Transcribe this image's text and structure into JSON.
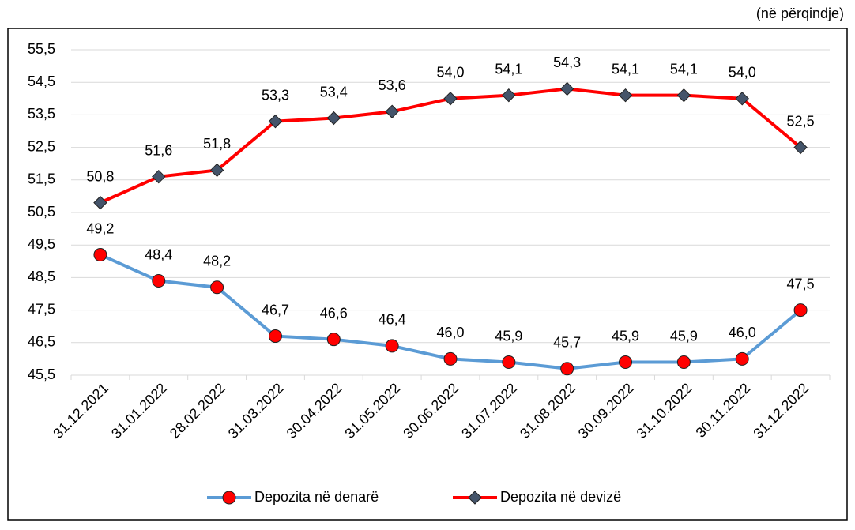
{
  "chart_data": {
    "type": "line",
    "unit_label": "(në përqindje)",
    "categories": [
      "31.12.2021",
      "31.01.2022",
      "28.02.2022",
      "31.03.2022",
      "30.04.2022",
      "31.05.2022",
      "30.06.2022",
      "31.07.2022",
      "31.08.2022",
      "30.09.2022",
      "31.10.2022",
      "30.11.2022",
      "31.12.2022"
    ],
    "series": [
      {
        "name": "Depozita në denarë",
        "color": "#5b9bd5",
        "marker": "circle",
        "marker_color": "#ff0000",
        "values": [
          49.2,
          48.4,
          48.2,
          46.7,
          46.6,
          46.4,
          46.0,
          45.9,
          45.7,
          45.9,
          45.9,
          46.0,
          47.5
        ],
        "value_labels": [
          "49,2",
          "48,4",
          "48,2",
          "46,7",
          "46,6",
          "46,4",
          "46,0",
          "45,9",
          "45,7",
          "45,9",
          "45,9",
          "46,0",
          "47,5"
        ]
      },
      {
        "name": "Depozita në devizë",
        "color": "#ff0000",
        "marker": "diamond",
        "marker_color": "#44546a",
        "values": [
          50.8,
          51.6,
          51.8,
          53.3,
          53.4,
          53.6,
          54.0,
          54.1,
          54.3,
          54.1,
          54.1,
          54.0,
          52.5
        ],
        "value_labels": [
          "50,8",
          "51,6",
          "51,8",
          "53,3",
          "53,4",
          "53,6",
          "54,0",
          "54,1",
          "54,3",
          "54,1",
          "54,1",
          "54,0",
          "52,5"
        ]
      }
    ],
    "ylim": [
      45.5,
      55.5
    ],
    "yticks": [
      {
        "value": 45.5,
        "label": "45,5"
      },
      {
        "value": 46.5,
        "label": "46,5"
      },
      {
        "value": 47.5,
        "label": "47,5"
      },
      {
        "value": 48.5,
        "label": "48,5"
      },
      {
        "value": 49.5,
        "label": "49,5"
      },
      {
        "value": 50.5,
        "label": "50,5"
      },
      {
        "value": 51.5,
        "label": "51,5"
      },
      {
        "value": 52.5,
        "label": "52,5"
      },
      {
        "value": 53.5,
        "label": "53,5"
      },
      {
        "value": 54.5,
        "label": "54,5"
      },
      {
        "value": 55.5,
        "label": "55,5"
      }
    ],
    "grid": true,
    "legend": "bottom"
  }
}
